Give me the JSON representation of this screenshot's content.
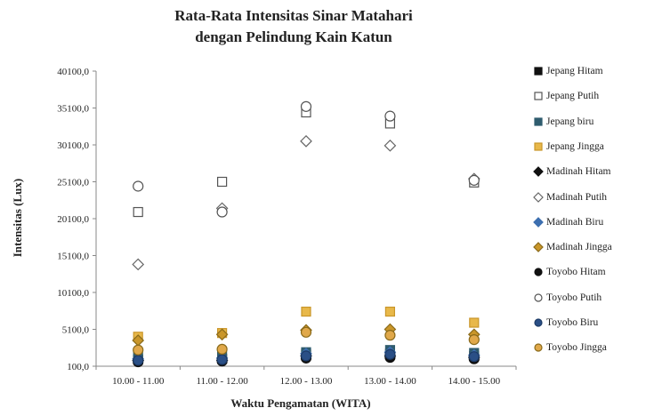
{
  "chart_data": {
    "type": "scatter",
    "title": "Rata-Rata Intensitas Sinar Matahari",
    "subtitle": "dengan Pelindung Kain Katun",
    "xlabel": "Waktu Pengamatan (WITA)",
    "ylabel": "Intensitas (Lux)",
    "categories": [
      "10.00 - 11.00",
      "11.00 - 12.00",
      "12.00 - 13.00",
      "13.00 - 14.00",
      "14.00 - 15.00"
    ],
    "yticks": [
      "100,0",
      "5100,0",
      "10100,0",
      "15100,0",
      "20100,0",
      "25100,0",
      "30100,0",
      "35100,0",
      "40100,0"
    ],
    "ytick_values": [
      100,
      5100,
      10100,
      15100,
      20100,
      25100,
      30100,
      35100,
      40100
    ],
    "ylim": [
      100,
      40100
    ],
    "grid": false,
    "legend_position": "right",
    "series": [
      {
        "name": "Jepang Hitam",
        "marker": "square",
        "fill": "#111111",
        "stroke": "#111111",
        "values": [
          1000,
          1100,
          1700,
          1800,
          1500
        ]
      },
      {
        "name": "Jepang Putih",
        "marker": "square",
        "fill": "#ffffff",
        "stroke": "#555555",
        "values": [
          21000,
          25100,
          34500,
          33000,
          25000
        ]
      },
      {
        "name": "Jepang biru",
        "marker": "square",
        "fill": "#2f5c6e",
        "stroke": "#2f5c6e",
        "values": [
          1400,
          1500,
          2000,
          2300,
          1900
        ]
      },
      {
        "name": "Jepang Jingga",
        "marker": "square",
        "fill": "#e8b84a",
        "stroke": "#c9962a",
        "values": [
          4100,
          4600,
          7500,
          7500,
          6000
        ]
      },
      {
        "name": "Madinah Hitam",
        "marker": "diamond",
        "fill": "#111111",
        "stroke": "#111111",
        "values": [
          900,
          900,
          1500,
          1500,
          1300
        ]
      },
      {
        "name": "Madinah Putih",
        "marker": "diamond",
        "fill": "#ffffff",
        "stroke": "#666666",
        "values": [
          13900,
          21500,
          30600,
          30000,
          25500
        ]
      },
      {
        "name": "Madinah Biru",
        "marker": "diamond",
        "fill": "#3d6fb0",
        "stroke": "#3d6fb0",
        "values": [
          1100,
          1200,
          1800,
          2000,
          1600
        ]
      },
      {
        "name": "Madinah Jingga",
        "marker": "diamond",
        "fill": "#c9962a",
        "stroke": "#8a6a1a",
        "values": [
          3600,
          4400,
          5000,
          5100,
          4400
        ]
      },
      {
        "name": "Toyobo Hitam",
        "marker": "circle",
        "fill": "#111111",
        "stroke": "#111111",
        "values": [
          700,
          800,
          1200,
          1300,
          1100
        ]
      },
      {
        "name": "Toyobo Putih",
        "marker": "circle",
        "fill": "#ffffff",
        "stroke": "#555555",
        "values": [
          24500,
          21000,
          35300,
          34000,
          25300
        ]
      },
      {
        "name": "Toyobo Biru",
        "marker": "circle",
        "fill": "#2a4f86",
        "stroke": "#1c3a66",
        "values": [
          900,
          1000,
          1500,
          1700,
          1400
        ]
      },
      {
        "name": "Toyobo Jingga",
        "marker": "circle",
        "fill": "#e0a84a",
        "stroke": "#8a6a1a",
        "values": [
          2300,
          2400,
          4700,
          4300,
          3700
        ]
      }
    ]
  }
}
